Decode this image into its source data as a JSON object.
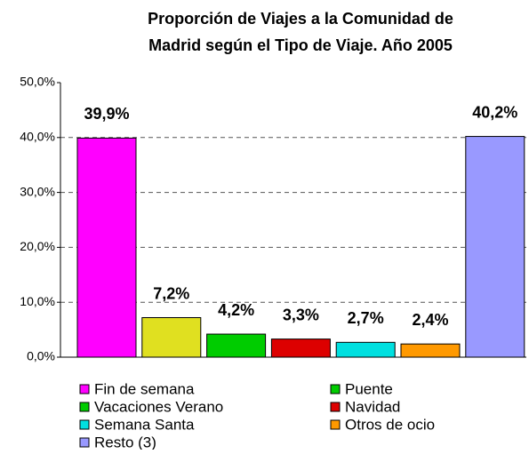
{
  "chart_data": {
    "type": "bar",
    "title": [
      "Proporción de Viajes a la Comunidad de",
      "Madrid según el Tipo de Viaje. Año 2005"
    ],
    "series": [
      {
        "name": "Fin de semana",
        "color": "#ff00ff",
        "legend_color": "#ff00ff",
        "values": [
          39.9
        ],
        "value_labels": [
          "39,9%"
        ]
      },
      {
        "name": "Puente",
        "color": "#e0e020",
        "legend_color": "#00cc00",
        "values": [
          7.2
        ],
        "value_labels": [
          "7,2%"
        ]
      },
      {
        "name": "Vacaciones Verano",
        "color": "#00cc00",
        "legend_color": "#00cc00",
        "values": [
          4.2
        ],
        "value_labels": [
          "4,2%"
        ]
      },
      {
        "name": "Navidad",
        "color": "#dd0000",
        "legend_color": "#dd0000",
        "values": [
          3.3
        ],
        "value_labels": [
          "3,3%"
        ]
      },
      {
        "name": "Semana Santa",
        "color": "#00e0e0",
        "legend_color": "#00e0e0",
        "values": [
          2.7
        ],
        "value_labels": [
          "2,7%"
        ]
      },
      {
        "name": "Otros de ocio",
        "color": "#ff9900",
        "legend_color": "#ff9900",
        "values": [
          2.4
        ],
        "value_labels": [
          "2,4%"
        ]
      },
      {
        "name": "Resto (3)",
        "color": "#9999ff",
        "legend_color": "#9999ff",
        "values": [
          40.2
        ],
        "value_labels": [
          "40,2%"
        ]
      }
    ],
    "ylim": [
      0,
      50
    ],
    "yticks": [
      {
        "value": 0,
        "label": "0,0%"
      },
      {
        "value": 10,
        "label": "10,0%"
      },
      {
        "value": 20,
        "label": "20,0%"
      },
      {
        "value": 30,
        "label": "30,0%"
      },
      {
        "value": 40,
        "label": "40,0%"
      },
      {
        "value": 50,
        "label": "50,0%"
      }
    ],
    "grid": true,
    "legend": "bottom"
  }
}
